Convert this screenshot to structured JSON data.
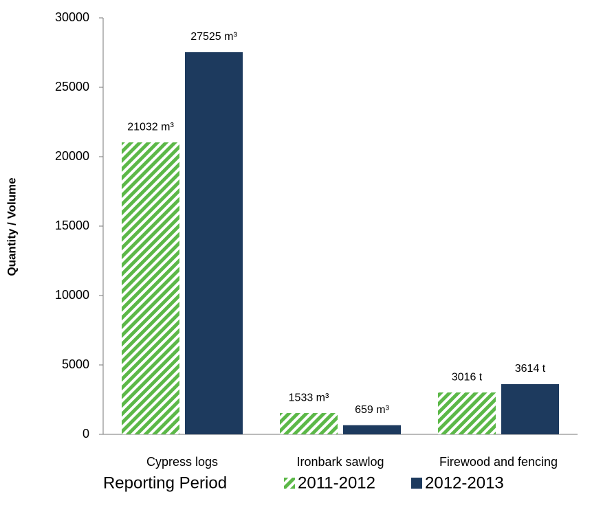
{
  "chart_data": {
    "type": "bar",
    "ylabel": "Quantity / Volume",
    "xlabel": "Reporting Period",
    "categories": [
      "Cypress logs",
      "Ironbark sawlog",
      "Firewood and fencing"
    ],
    "series": [
      {
        "name": "2011-2012",
        "color": "#5cb848",
        "hatch": true,
        "values": [
          21032,
          1533,
          3016
        ],
        "value_labels": [
          "21032 m³",
          "1533 m³",
          "3016 t"
        ]
      },
      {
        "name": "2012-2013",
        "color": "#1d3a5e",
        "hatch": false,
        "values": [
          27525,
          659,
          3614
        ],
        "value_labels": [
          "27525 m³",
          "659 m³",
          "3614 t"
        ]
      }
    ],
    "ylim": [
      0,
      30000
    ],
    "yticks": [
      0,
      5000,
      10000,
      15000,
      20000,
      25000,
      30000
    ],
    "grid": false
  }
}
